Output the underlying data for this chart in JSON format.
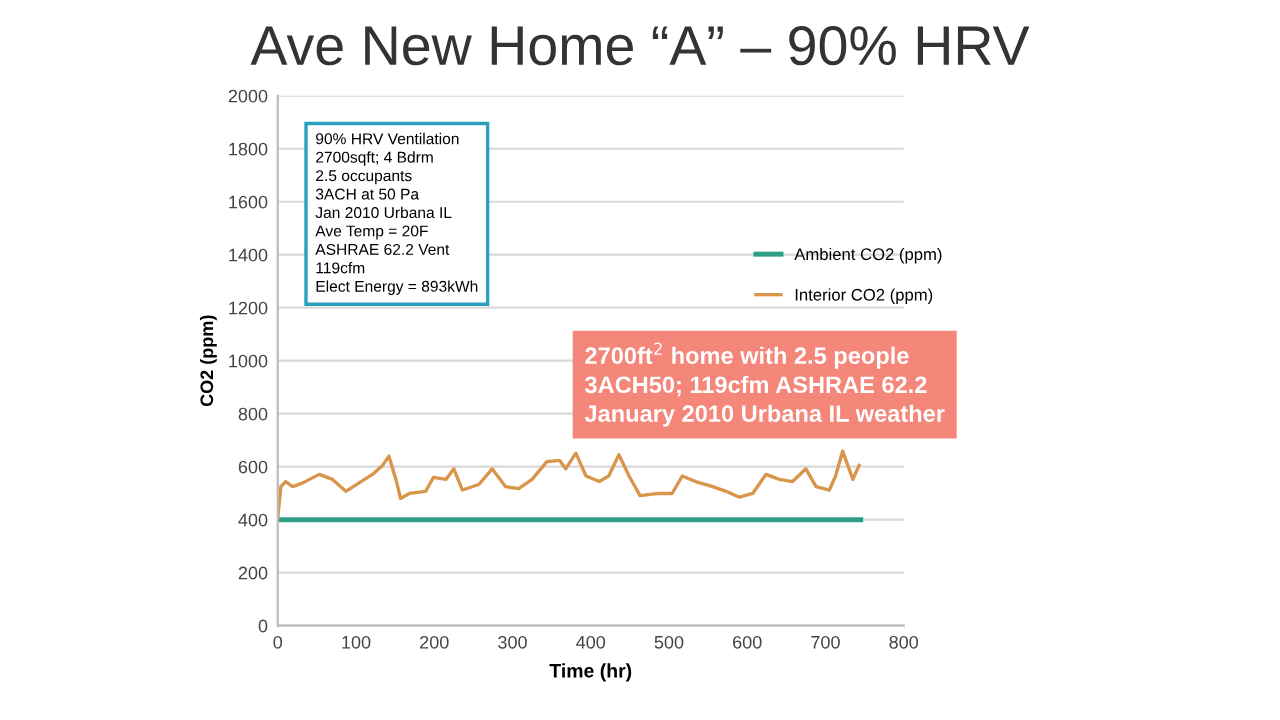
{
  "chart_data": {
    "type": "line",
    "title": "Ave New Home “A” – 90% HRV",
    "xlabel": "Time (hr)",
    "ylabel": "CO2 (ppm)",
    "xlim": [
      0,
      800
    ],
    "xticks": [
      0,
      100,
      200,
      300,
      400,
      500,
      600,
      700,
      800
    ],
    "ylim": [
      0,
      2000
    ],
    "yticks": [
      0,
      200,
      400,
      600,
      800,
      1000,
      1200,
      1400,
      1600,
      1800,
      2000
    ],
    "grid": "y",
    "legend": "right",
    "marker": "none",
    "line_style": "solid",
    "annotations": [
      "90% HRV Ventilation\n2700sqft; 4 Bdrm\n2.5 occupants\n3ACH at 50 Pa\nJan 2010 Urbana IL\nAve Temp = 20F\nASHRAE 62.2 Vent\n119cfm\nElect Energy = 893kWh",
      "2700ft$^{2}$ home with 2.5 people\n3ACH50; 119cfm ASHRAE 62.2\nJanuary 2010 Urbana IL weather"
    ],
    "series": [
      {
        "name": "Ambient CO2 (ppm)",
        "color": "#2e9e86",
        "x": [
          0,
          745
        ],
        "values": [
          400,
          400
        ]
      },
      {
        "name": "Interior CO2 (ppm)",
        "color": "#d9954a",
        "x": [
          0,
          4,
          10,
          19,
          32,
          53,
          70,
          87,
          104,
          121,
          134,
          142,
          151,
          157,
          168,
          189,
          199,
          215,
          225,
          236,
          257,
          274,
          291,
          308,
          325,
          344,
          360,
          368,
          381,
          394,
          411,
          423,
          436,
          449,
          463,
          487,
          504,
          517,
          534,
          556,
          573,
          590,
          607,
          624,
          641,
          658,
          675,
          688,
          705,
          713,
          722,
          735,
          743
        ],
        "values": [
          405,
          525,
          544,
          525,
          539,
          571,
          552,
          507,
          539,
          571,
          605,
          640,
          552,
          480,
          499,
          507,
          560,
          552,
          592,
          512,
          533,
          592,
          525,
          517,
          552,
          619,
          624,
          592,
          651,
          565,
          544,
          565,
          645,
          565,
          491,
          499,
          499,
          565,
          544,
          525,
          507,
          485,
          499,
          571,
          552,
          544,
          592,
          525,
          512,
          565,
          659,
          552,
          605
        ]
      }
    ]
  }
}
